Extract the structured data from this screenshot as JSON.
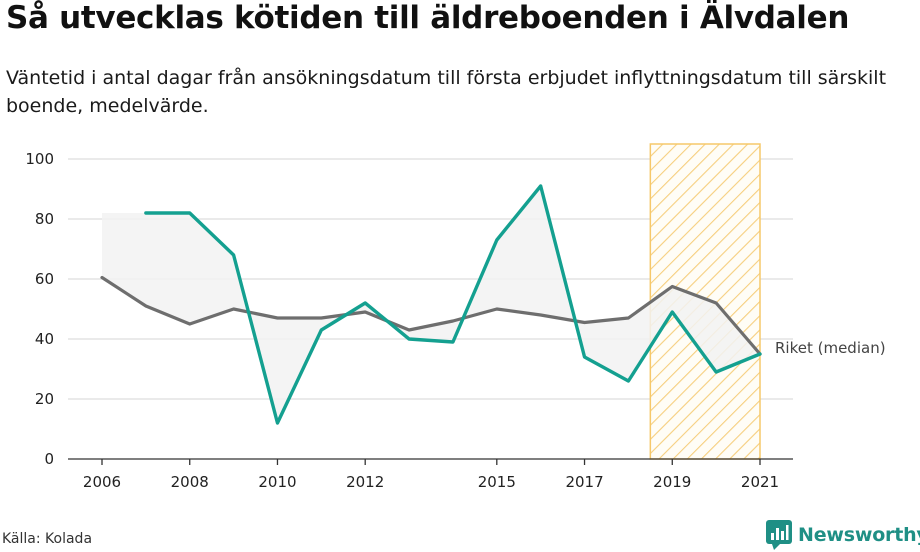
{
  "title": "Så utvecklas kötiden till äldreboenden i Älvdalen",
  "subtitle": "Väntetid i antal dagar från ansökningsdatum till första erbjudet inflyttningsdatum till särskilt boende, medelvärde.",
  "source": "Källa: Kolada",
  "brand": "Newsworthy",
  "colors": {
    "local": "#14a090",
    "national": "#6e6e6e",
    "highlight": "#f6c86a",
    "fill": "#ececec",
    "grid": "#d6d6d6"
  },
  "chart_data": {
    "type": "line",
    "title": "Så utvecklas kötiden till äldreboenden i Älvdalen",
    "xlabel": "",
    "ylabel": "",
    "xlim": [
      2006,
      2021
    ],
    "ylim": [
      0,
      100
    ],
    "yticks": [
      0,
      20,
      40,
      60,
      80,
      100
    ],
    "xticks": [
      "2006",
      "2008",
      "2010",
      "2012",
      "2015",
      "2017",
      "2019",
      "2021"
    ],
    "highlight_range": [
      2018.5,
      2021
    ],
    "series": [
      {
        "name": "Älvdalen",
        "x": [
          2007,
          2008,
          2009,
          2010,
          2011,
          2012,
          2013,
          2014,
          2015,
          2016,
          2017,
          2018,
          2019,
          2020,
          2021
        ],
        "values": [
          82,
          82,
          68,
          12,
          43,
          52,
          40,
          39,
          73,
          91,
          34,
          26,
          49,
          29,
          35
        ]
      },
      {
        "name": "Riket (median)",
        "x": [
          2006,
          2007,
          2008,
          2009,
          2010,
          2011,
          2012,
          2013,
          2014,
          2015,
          2016,
          2017,
          2018,
          2019,
          2020,
          2021
        ],
        "values": [
          60.5,
          51,
          45,
          50,
          47,
          47,
          49,
          43,
          46,
          50,
          48,
          45.5,
          47,
          57.5,
          52,
          35
        ]
      }
    ],
    "labels": {
      "national": "Riket (median)"
    }
  }
}
